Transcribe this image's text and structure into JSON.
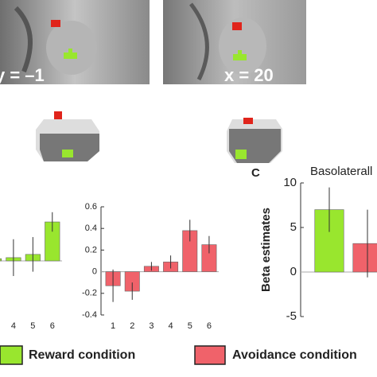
{
  "images": {
    "left_label": "y = –1",
    "right_label": "x = 20"
  },
  "panel_label": "C",
  "legend": [
    {
      "name": "Reward condition",
      "color": "#99e62e"
    },
    {
      "name": "Avoidance condition",
      "color": "#f0626a"
    }
  ],
  "chart_data": [
    {
      "type": "bar",
      "categories": [
        null,
        "4",
        "5",
        "6"
      ],
      "values": [
        0.02,
        0.03,
        0.06,
        0.36
      ],
      "errors": [
        0.05,
        0.17,
        0.16,
        0.09
      ],
      "color": "#99e62e",
      "ylim": [
        -0.5,
        0.5
      ]
    },
    {
      "type": "bar",
      "categories": [
        "1",
        "2",
        "3",
        "4",
        "5",
        "6"
      ],
      "values": [
        -0.13,
        -0.18,
        0.05,
        0.09,
        0.38,
        0.25
      ],
      "errors": [
        0.15,
        0.08,
        0.04,
        0.06,
        0.1,
        0.08
      ],
      "color": "#f0626a",
      "ylim": [
        -0.4,
        0.6
      ],
      "yticks": [
        -0.4,
        -0.2,
        0,
        0.2,
        0.4,
        0.6
      ]
    },
    {
      "type": "bar",
      "title": "Basolaterall",
      "ylabel": "Beta estimates",
      "categories": [
        null,
        null
      ],
      "values": [
        7,
        3.2
      ],
      "errors": [
        2.5,
        3.8
      ],
      "colors": [
        "#99e62e",
        "#f0626a"
      ],
      "ylim": [
        -5,
        10
      ],
      "yticks": [
        -5,
        0,
        5,
        10
      ]
    }
  ]
}
